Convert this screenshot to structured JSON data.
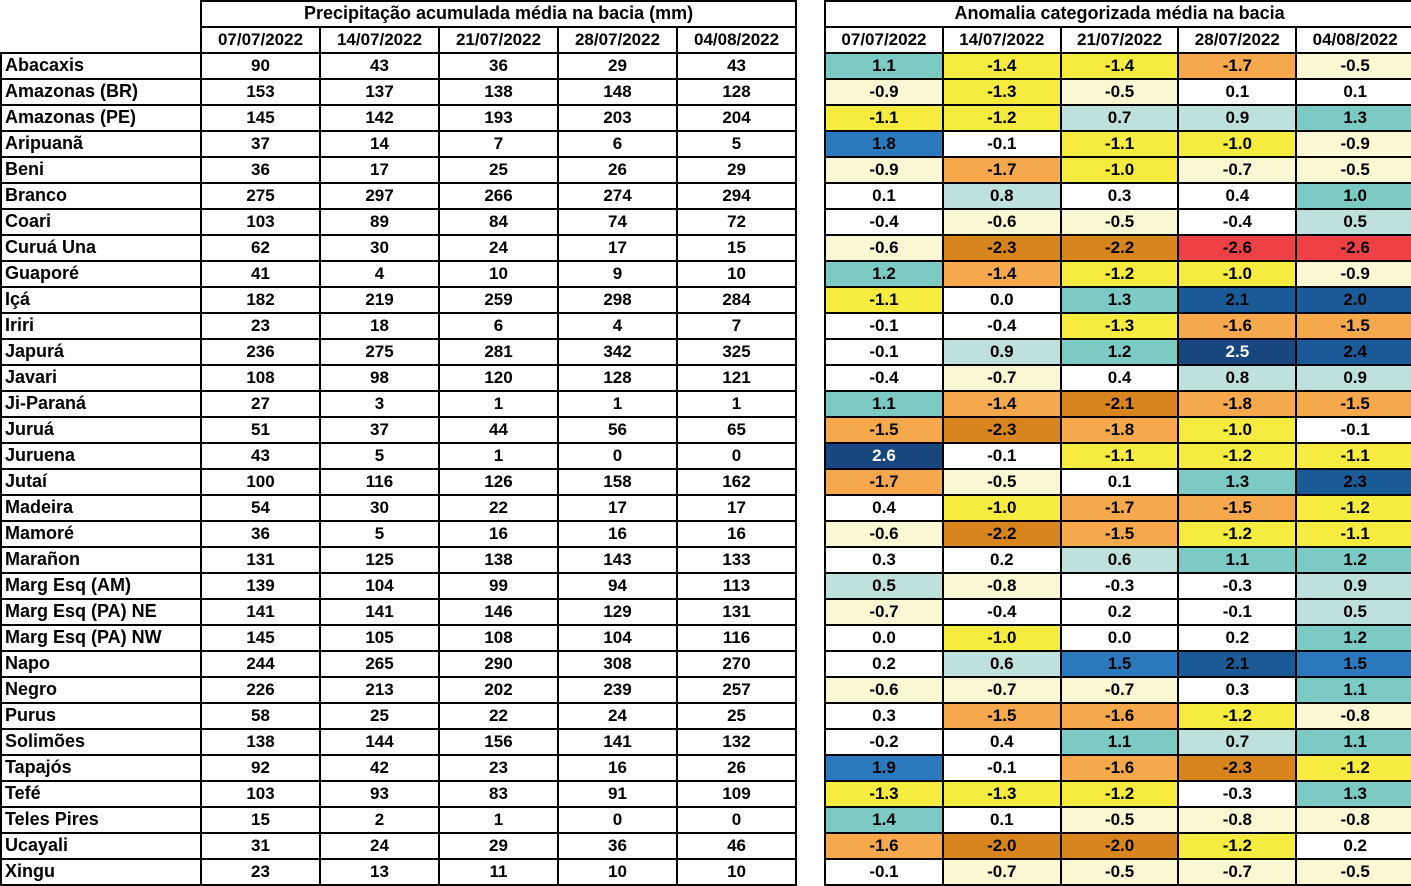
{
  "palette": {
    "navy_dark": {
      "bg": "#17477E",
      "fg": "#FFFFFF"
    },
    "navy": {
      "bg": "#1A5A96",
      "fg": "#000000"
    },
    "blue": {
      "bg": "#2A79BD",
      "fg": "#000000"
    },
    "teal": {
      "bg": "#7BCBC4",
      "fg": "#000000"
    },
    "pale_teal": {
      "bg": "#BFE1DD",
      "fg": "#000000"
    },
    "white": {
      "bg": "#FFFFFF",
      "fg": "#000000"
    },
    "cream": {
      "bg": "#FAF8D3",
      "fg": "#000000"
    },
    "yellow": {
      "bg": "#F6EB3F",
      "fg": "#000000"
    },
    "orange": {
      "bg": "#F6A94C",
      "fg": "#000000"
    },
    "dark_orange": {
      "bg": "#D8851E",
      "fg": "#000000"
    },
    "red": {
      "bg": "#EF4145",
      "fg": "#000000"
    }
  },
  "chart_data": [
    {
      "type": "table",
      "title": "Precipitação acumulada média na bacia (mm)",
      "columns": [
        "07/07/2022",
        "14/07/2022",
        "21/07/2022",
        "28/07/2022",
        "04/08/2022"
      ],
      "rows": [
        {
          "basin": "Abacaxis",
          "values": [
            90,
            43,
            36,
            29,
            43
          ]
        },
        {
          "basin": "Amazonas (BR)",
          "values": [
            153,
            137,
            138,
            148,
            128
          ]
        },
        {
          "basin": "Amazonas (PE)",
          "values": [
            145,
            142,
            193,
            203,
            204
          ]
        },
        {
          "basin": "Aripuanã",
          "values": [
            37,
            14,
            7,
            6,
            5
          ]
        },
        {
          "basin": "Beni",
          "values": [
            36,
            17,
            25,
            26,
            29
          ]
        },
        {
          "basin": "Branco",
          "values": [
            275,
            297,
            266,
            274,
            294
          ]
        },
        {
          "basin": "Coari",
          "values": [
            103,
            89,
            84,
            74,
            72
          ]
        },
        {
          "basin": "Curuá Una",
          "values": [
            62,
            30,
            24,
            17,
            15
          ]
        },
        {
          "basin": "Guaporé",
          "values": [
            41,
            4,
            10,
            9,
            10
          ]
        },
        {
          "basin": "Içá",
          "values": [
            182,
            219,
            259,
            298,
            284
          ]
        },
        {
          "basin": "Iriri",
          "values": [
            23,
            18,
            6,
            4,
            7
          ]
        },
        {
          "basin": "Japurá",
          "values": [
            236,
            275,
            281,
            342,
            325
          ]
        },
        {
          "basin": "Javari",
          "values": [
            108,
            98,
            120,
            128,
            121
          ]
        },
        {
          "basin": "Ji-Paraná",
          "values": [
            27,
            3,
            1,
            1,
            1
          ]
        },
        {
          "basin": "Juruá",
          "values": [
            51,
            37,
            44,
            56,
            65
          ]
        },
        {
          "basin": "Juruena",
          "values": [
            43,
            5,
            1,
            0,
            0
          ]
        },
        {
          "basin": "Jutaí",
          "values": [
            100,
            116,
            126,
            158,
            162
          ]
        },
        {
          "basin": "Madeira",
          "values": [
            54,
            30,
            22,
            17,
            17
          ]
        },
        {
          "basin": "Mamoré",
          "values": [
            36,
            5,
            16,
            16,
            16
          ]
        },
        {
          "basin": "Marañon",
          "values": [
            131,
            125,
            138,
            143,
            133
          ]
        },
        {
          "basin": "Marg Esq (AM)",
          "values": [
            139,
            104,
            99,
            94,
            113
          ]
        },
        {
          "basin": "Marg Esq (PA) NE",
          "values": [
            141,
            141,
            146,
            129,
            131
          ]
        },
        {
          "basin": "Marg Esq (PA) NW",
          "values": [
            145,
            105,
            108,
            104,
            116
          ]
        },
        {
          "basin": "Napo",
          "values": [
            244,
            265,
            290,
            308,
            270
          ]
        },
        {
          "basin": "Negro",
          "values": [
            226,
            213,
            202,
            239,
            257
          ]
        },
        {
          "basin": "Purus",
          "values": [
            58,
            25,
            22,
            24,
            25
          ]
        },
        {
          "basin": "Solimões",
          "values": [
            138,
            144,
            156,
            141,
            132
          ]
        },
        {
          "basin": "Tapajós",
          "values": [
            92,
            42,
            23,
            16,
            26
          ]
        },
        {
          "basin": "Tefé",
          "values": [
            103,
            93,
            83,
            91,
            109
          ]
        },
        {
          "basin": "Teles Pires",
          "values": [
            15,
            2,
            1,
            0,
            0
          ]
        },
        {
          "basin": "Ucayali",
          "values": [
            31,
            24,
            29,
            36,
            46
          ]
        },
        {
          "basin": "Xingu",
          "values": [
            23,
            13,
            11,
            10,
            10
          ]
        }
      ]
    },
    {
      "type": "heatmap",
      "title": "Anomalia categorizada média na bacia",
      "columns": [
        "07/07/2022",
        "14/07/2022",
        "21/07/2022",
        "28/07/2022",
        "04/08/2022"
      ],
      "rows": [
        {
          "basin": "Abacaxis",
          "values": [
            1.1,
            -1.4,
            -1.4,
            -1.7,
            -0.5
          ],
          "categories": [
            "teal",
            "yellow",
            "yellow",
            "orange",
            "cream"
          ]
        },
        {
          "basin": "Amazonas (BR)",
          "values": [
            -0.9,
            -1.3,
            -0.5,
            0.1,
            0.1
          ],
          "categories": [
            "cream",
            "yellow",
            "cream",
            "white",
            "white"
          ]
        },
        {
          "basin": "Amazonas (PE)",
          "values": [
            -1.1,
            -1.2,
            0.7,
            0.9,
            1.3
          ],
          "categories": [
            "yellow",
            "yellow",
            "pale_teal",
            "pale_teal",
            "teal"
          ]
        },
        {
          "basin": "Aripuanã",
          "values": [
            1.8,
            -0.1,
            -1.1,
            -1.0,
            -0.9
          ],
          "categories": [
            "blue",
            "white",
            "yellow",
            "yellow",
            "cream"
          ]
        },
        {
          "basin": "Beni",
          "values": [
            -0.9,
            -1.7,
            -1.0,
            -0.7,
            -0.5
          ],
          "categories": [
            "cream",
            "orange",
            "yellow",
            "cream",
            "cream"
          ]
        },
        {
          "basin": "Branco",
          "values": [
            0.1,
            0.8,
            0.3,
            0.4,
            1.0
          ],
          "categories": [
            "white",
            "pale_teal",
            "white",
            "white",
            "teal"
          ]
        },
        {
          "basin": "Coari",
          "values": [
            -0.4,
            -0.6,
            -0.5,
            -0.4,
            0.5
          ],
          "categories": [
            "white",
            "cream",
            "cream",
            "white",
            "pale_teal"
          ]
        },
        {
          "basin": "Curuá Una",
          "values": [
            -0.6,
            -2.3,
            -2.2,
            -2.6,
            -2.6
          ],
          "categories": [
            "cream",
            "dark_orange",
            "dark_orange",
            "red",
            "red"
          ]
        },
        {
          "basin": "Guaporé",
          "values": [
            1.2,
            -1.4,
            -1.2,
            -1.0,
            -0.9
          ],
          "categories": [
            "teal",
            "orange",
            "yellow",
            "yellow",
            "cream"
          ]
        },
        {
          "basin": "Içá",
          "values": [
            -1.1,
            0.0,
            1.3,
            2.1,
            2.0
          ],
          "categories": [
            "yellow",
            "white",
            "teal",
            "navy",
            "navy"
          ]
        },
        {
          "basin": "Iriri",
          "values": [
            -0.1,
            -0.4,
            -1.3,
            -1.6,
            -1.5
          ],
          "categories": [
            "white",
            "white",
            "yellow",
            "orange",
            "orange"
          ]
        },
        {
          "basin": "Japurá",
          "values": [
            -0.1,
            0.9,
            1.2,
            2.5,
            2.4
          ],
          "categories": [
            "white",
            "pale_teal",
            "teal",
            "navy_dark",
            "navy"
          ]
        },
        {
          "basin": "Javari",
          "values": [
            -0.4,
            -0.7,
            0.4,
            0.8,
            0.9
          ],
          "categories": [
            "white",
            "cream",
            "white",
            "pale_teal",
            "pale_teal"
          ]
        },
        {
          "basin": "Ji-Paraná",
          "values": [
            1.1,
            -1.4,
            -2.1,
            -1.8,
            -1.5
          ],
          "categories": [
            "teal",
            "orange",
            "dark_orange",
            "orange",
            "orange"
          ]
        },
        {
          "basin": "Juruá",
          "values": [
            -1.5,
            -2.3,
            -1.8,
            -1.0,
            -0.1
          ],
          "categories": [
            "orange",
            "dark_orange",
            "orange",
            "yellow",
            "white"
          ]
        },
        {
          "basin": "Juruena",
          "values": [
            2.6,
            -0.1,
            -1.1,
            -1.2,
            -1.1
          ],
          "categories": [
            "navy_dark",
            "white",
            "yellow",
            "yellow",
            "yellow"
          ]
        },
        {
          "basin": "Jutaí",
          "values": [
            -1.7,
            -0.5,
            0.1,
            1.3,
            2.3
          ],
          "categories": [
            "orange",
            "cream",
            "white",
            "teal",
            "navy"
          ]
        },
        {
          "basin": "Madeira",
          "values": [
            0.4,
            -1.0,
            -1.7,
            -1.5,
            -1.2
          ],
          "categories": [
            "white",
            "yellow",
            "orange",
            "orange",
            "yellow"
          ]
        },
        {
          "basin": "Mamoré",
          "values": [
            -0.6,
            -2.2,
            -1.5,
            -1.2,
            -1.1
          ],
          "categories": [
            "cream",
            "dark_orange",
            "orange",
            "yellow",
            "yellow"
          ]
        },
        {
          "basin": "Marañon",
          "values": [
            0.3,
            0.2,
            0.6,
            1.1,
            1.2
          ],
          "categories": [
            "white",
            "white",
            "pale_teal",
            "teal",
            "teal"
          ]
        },
        {
          "basin": "Marg Esq (AM)",
          "values": [
            0.5,
            -0.8,
            -0.3,
            -0.3,
            0.9
          ],
          "categories": [
            "pale_teal",
            "cream",
            "white",
            "white",
            "pale_teal"
          ]
        },
        {
          "basin": "Marg Esq (PA) NE",
          "values": [
            -0.7,
            -0.4,
            0.2,
            -0.1,
            0.5
          ],
          "categories": [
            "cream",
            "white",
            "white",
            "white",
            "pale_teal"
          ]
        },
        {
          "basin": "Marg Esq (PA) NW",
          "values": [
            0.0,
            -1.0,
            0.0,
            0.2,
            1.2
          ],
          "categories": [
            "white",
            "yellow",
            "white",
            "white",
            "teal"
          ]
        },
        {
          "basin": "Napo",
          "values": [
            0.2,
            0.6,
            1.5,
            2.1,
            1.5
          ],
          "categories": [
            "white",
            "pale_teal",
            "blue",
            "navy",
            "blue"
          ]
        },
        {
          "basin": "Negro",
          "values": [
            -0.6,
            -0.7,
            -0.7,
            0.3,
            1.1
          ],
          "categories": [
            "cream",
            "cream",
            "cream",
            "white",
            "teal"
          ]
        },
        {
          "basin": "Purus",
          "values": [
            0.3,
            -1.5,
            -1.6,
            -1.2,
            -0.8
          ],
          "categories": [
            "white",
            "orange",
            "orange",
            "yellow",
            "cream"
          ]
        },
        {
          "basin": "Solimões",
          "values": [
            -0.2,
            0.4,
            1.1,
            0.7,
            1.1
          ],
          "categories": [
            "white",
            "white",
            "teal",
            "pale_teal",
            "teal"
          ]
        },
        {
          "basin": "Tapajós",
          "values": [
            1.9,
            -0.1,
            -1.6,
            -2.3,
            -1.2
          ],
          "categories": [
            "blue",
            "white",
            "orange",
            "dark_orange",
            "yellow"
          ]
        },
        {
          "basin": "Tefé",
          "values": [
            -1.3,
            -1.3,
            -1.2,
            -0.3,
            1.3
          ],
          "categories": [
            "yellow",
            "yellow",
            "yellow",
            "white",
            "teal"
          ]
        },
        {
          "basin": "Teles Pires",
          "values": [
            1.4,
            0.1,
            -0.5,
            -0.8,
            -0.8
          ],
          "categories": [
            "teal",
            "white",
            "cream",
            "cream",
            "cream"
          ]
        },
        {
          "basin": "Ucayali",
          "values": [
            -1.6,
            -2.0,
            -2.0,
            -1.2,
            0.2
          ],
          "categories": [
            "orange",
            "dark_orange",
            "dark_orange",
            "yellow",
            "white"
          ]
        },
        {
          "basin": "Xingu",
          "values": [
            -0.1,
            -0.7,
            -0.5,
            -0.7,
            -0.5
          ],
          "categories": [
            "white",
            "cream",
            "cream",
            "cream",
            "cream"
          ]
        }
      ]
    }
  ]
}
